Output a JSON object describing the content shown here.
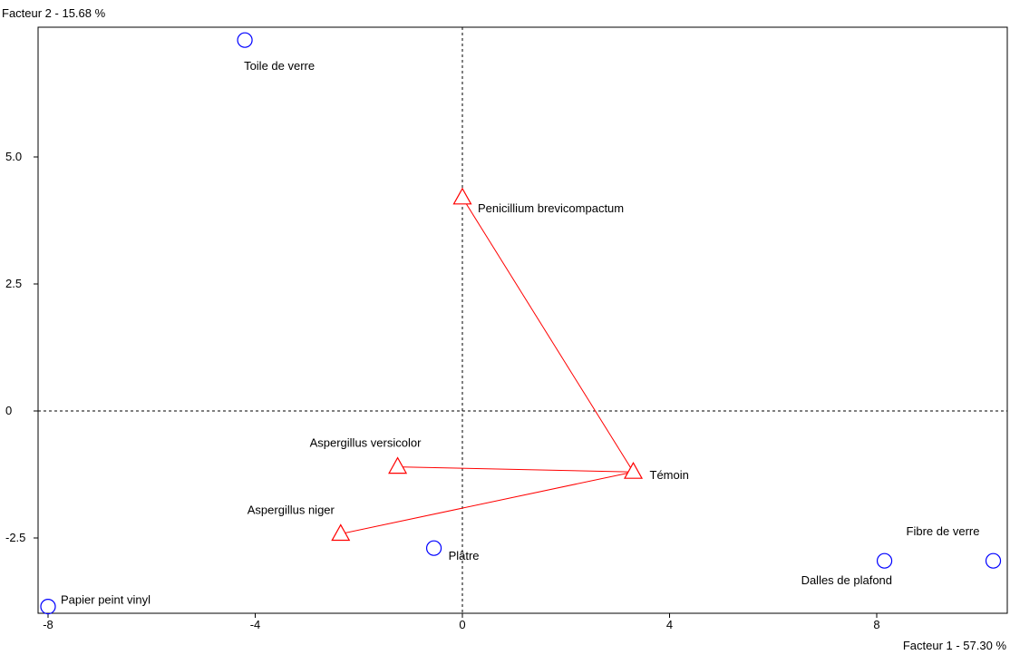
{
  "chart_data": {
    "type": "scatter",
    "xlabel": "Facteur 1  -  57.30 %",
    "ylabel": "Facteur 2  -  15.68 %",
    "xlim": [
      -8,
      10.3
    ],
    "ylim": [
      -3.9,
      7.4
    ],
    "x_ticks": [
      -8,
      -4,
      0,
      4,
      8
    ],
    "y_ticks": [
      -2.5,
      0,
      2.5,
      5.0
    ],
    "x_tick_labels": [
      "-8",
      "-4",
      "0",
      "4",
      "8"
    ],
    "y_tick_labels": [
      "-2.5",
      "0",
      "2.5",
      "5.0"
    ],
    "grid": false,
    "origin_lines": "dashed",
    "series": [
      {
        "marker": "circle",
        "color": "#0000ff",
        "points": [
          {
            "label": "Toile de verre",
            "x": -4.2,
            "y": 7.3
          },
          {
            "label": "Plâtre",
            "x": -0.55,
            "y": -2.7
          },
          {
            "label": "Papier peint vinyl",
            "x": -8.0,
            "y": -3.85
          },
          {
            "label": "Dalles de plafond",
            "x": 8.15,
            "y": -2.95
          },
          {
            "label": "Fibre de verre",
            "x": 10.25,
            "y": -2.95
          }
        ]
      },
      {
        "marker": "triangle",
        "color": "#ff0000",
        "points": [
          {
            "label": "Penicillium brevicompactum",
            "x": 0.0,
            "y": 4.2
          },
          {
            "label": "Témoin",
            "x": 3.3,
            "y": -1.2
          },
          {
            "label": "Aspergillus versicolor",
            "x": -1.25,
            "y": -1.1
          },
          {
            "label": "Aspergillus niger",
            "x": -2.35,
            "y": -2.42
          }
        ]
      }
    ],
    "connections": [
      [
        "Penicillium brevicompactum",
        "Témoin"
      ],
      [
        "Aspergillus versicolor",
        "Témoin"
      ],
      [
        "Aspergillus niger",
        "Témoin"
      ]
    ]
  }
}
